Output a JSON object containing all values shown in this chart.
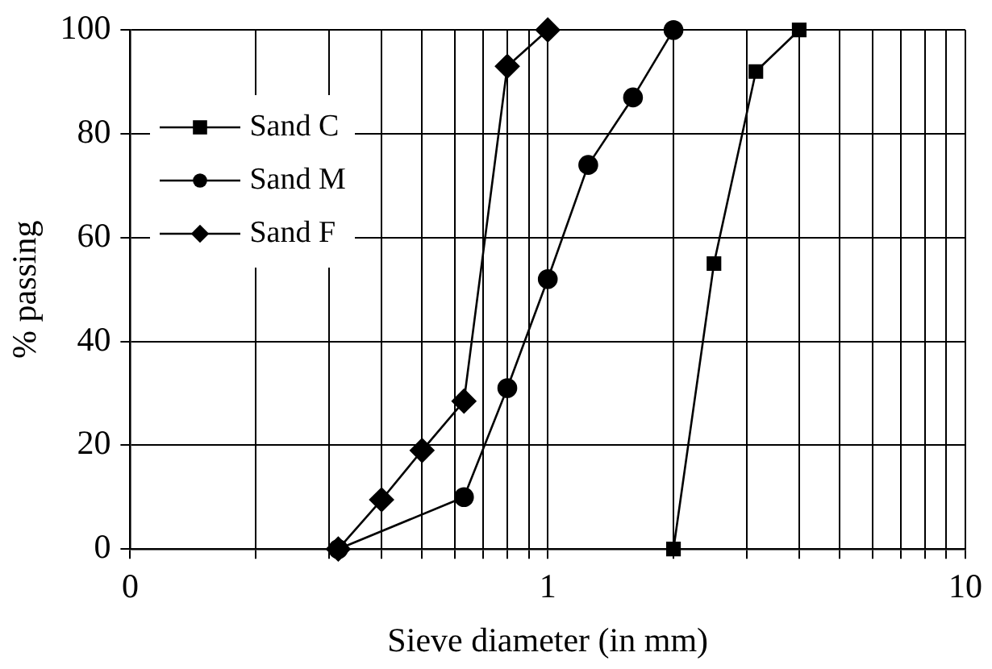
{
  "chart_data": {
    "type": "line",
    "xlabel": "Sieve diameter (in mm)",
    "ylabel": "% passing",
    "log": "x",
    "xlim": [
      0.1,
      10
    ],
    "xticks": [
      {
        "value": 0.1,
        "label": "0"
      },
      {
        "value": 0.2,
        "label": null
      },
      {
        "value": 0.3,
        "label": null
      },
      {
        "value": 0.4,
        "label": null
      },
      {
        "value": 0.5,
        "label": null
      },
      {
        "value": 0.6,
        "label": null
      },
      {
        "value": 0.7,
        "label": null
      },
      {
        "value": 0.8,
        "label": null
      },
      {
        "value": 0.9,
        "label": null
      },
      1,
      {
        "value": 2,
        "label": null
      },
      {
        "value": 3,
        "label": null
      },
      {
        "value": 4,
        "label": null
      },
      {
        "value": 5,
        "label": null
      },
      {
        "value": 6,
        "label": null
      },
      {
        "value": 7,
        "label": null
      },
      {
        "value": 8,
        "label": null
      },
      {
        "value": 9,
        "label": null
      },
      10
    ],
    "ylim": [
      0,
      100
    ],
    "yticks": [
      0,
      20,
      40,
      60,
      80,
      100
    ],
    "grid": true,
    "legend": "top left",
    "line_style": "solid",
    "series": [
      {
        "name": "Sand C",
        "color": "#000000",
        "marker": "square",
        "x": [
          2,
          2.5,
          3.15,
          4
        ],
        "values": [
          0,
          55,
          92,
          100
        ]
      },
      {
        "name": "Sand M",
        "color": "#000000",
        "marker": "circle",
        "x": [
          0.315,
          0.63,
          0.8,
          1,
          1.25,
          1.6,
          2
        ],
        "values": [
          0,
          10,
          31,
          52,
          74,
          87,
          100
        ]
      },
      {
        "name": "Sand F",
        "color": "#000000",
        "marker": "diamond",
        "x": [
          0.315,
          0.4,
          0.5,
          0.63,
          0.8,
          1
        ],
        "values": [
          0,
          9.5,
          19,
          28.5,
          93,
          100
        ]
      }
    ]
  }
}
